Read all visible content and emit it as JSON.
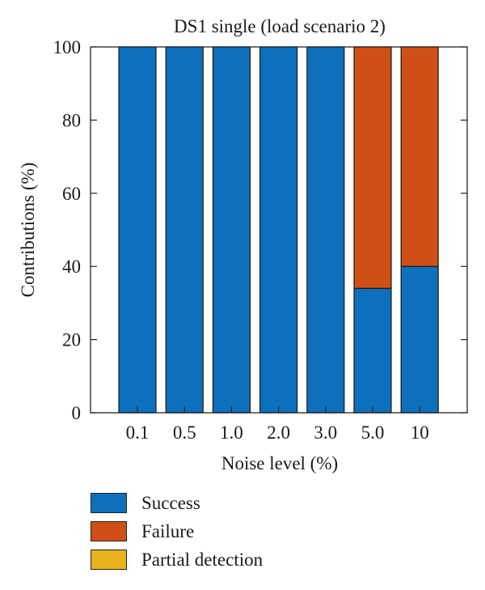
{
  "chart_data": {
    "type": "bar",
    "stacked": true,
    "title": "DS1 single (load scenario 2)",
    "xlabel": "Noise level (%)",
    "ylabel": "Contributions (%)",
    "categories": [
      "0.1",
      "0.5",
      "1.0",
      "2.0",
      "3.0",
      "5.0",
      "10"
    ],
    "ylim": [
      0,
      100
    ],
    "yticks": [
      0,
      20,
      40,
      60,
      80,
      100
    ],
    "grid": false,
    "legend_position": "bottom",
    "series": [
      {
        "name": "Success",
        "color": "#0e6fbd",
        "values": [
          100,
          100,
          100,
          100,
          100,
          34,
          40
        ]
      },
      {
        "name": "Failure",
        "color": "#cf4f17",
        "values": [
          0,
          0,
          0,
          0,
          0,
          66,
          60
        ]
      },
      {
        "name": "Partial detection",
        "color": "#e8b21e",
        "values": [
          0,
          0,
          0,
          0,
          0,
          0,
          0
        ]
      }
    ]
  }
}
